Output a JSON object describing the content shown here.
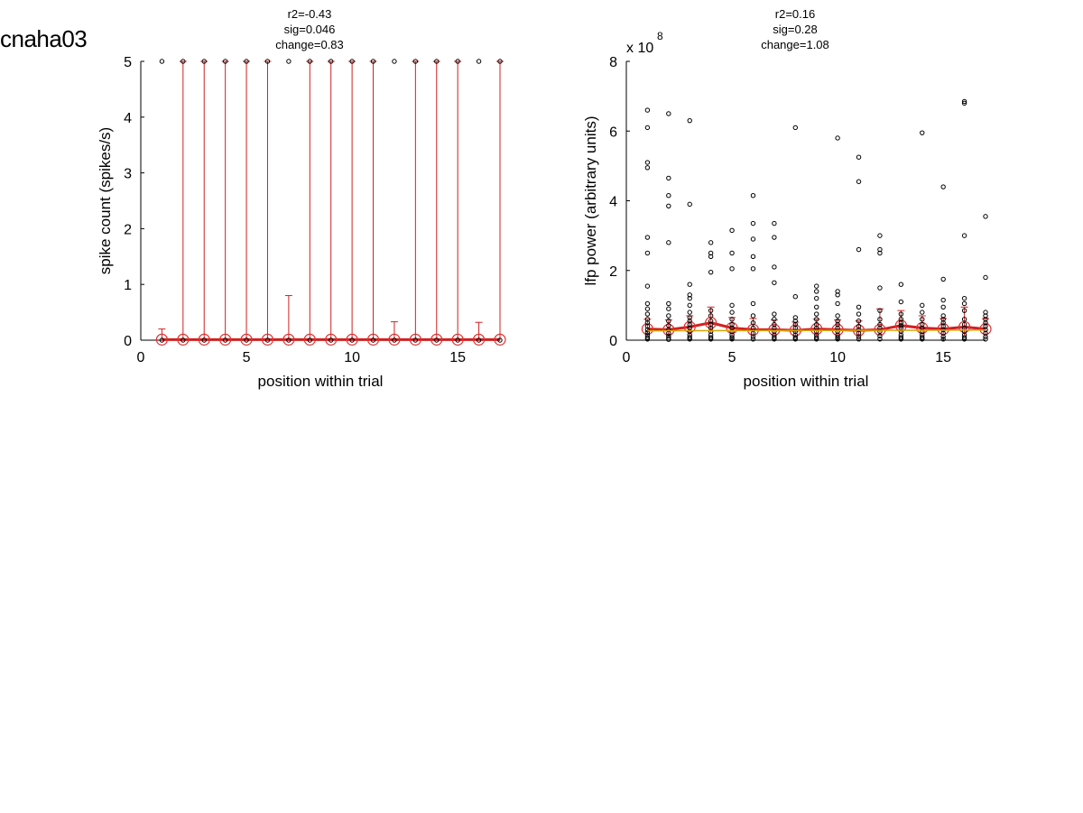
{
  "figure_label": "cnaha03",
  "chart_data": [
    {
      "type": "scatter",
      "title_lines": [
        "r2=-0.43",
        "sig=0.046",
        "change=0.83"
      ],
      "xlabel": "position within trial",
      "ylabel": "spike count (spikes/s)",
      "xlim": [
        0,
        17
      ],
      "ylim": [
        0,
        5
      ],
      "xticks": [
        0,
        5,
        10,
        15
      ],
      "yticks": [
        0,
        1,
        2,
        3,
        4,
        5
      ],
      "grid": false,
      "series": [
        {
          "kind": "points",
          "x": [
            1,
            1,
            2,
            2,
            3,
            3,
            4,
            4,
            5,
            5,
            6,
            6,
            7,
            7,
            8,
            8,
            9,
            9,
            10,
            10,
            11,
            11,
            12,
            12,
            13,
            13,
            14,
            14,
            15,
            15,
            16,
            16,
            17,
            17
          ],
          "y": [
            0,
            5,
            0,
            5,
            0,
            5,
            0,
            5,
            0,
            5,
            0,
            5,
            0,
            5,
            0,
            5,
            0,
            5,
            0,
            5,
            0,
            5,
            0,
            5,
            0,
            5,
            0,
            5,
            0,
            5,
            0,
            5,
            0,
            5
          ]
        },
        {
          "kind": "mean_errorbar",
          "x": [
            1,
            2,
            3,
            4,
            5,
            6,
            7,
            8,
            9,
            10,
            11,
            12,
            13,
            14,
            15,
            16,
            17
          ],
          "mean": [
            0.01,
            0.01,
            0.01,
            0.01,
            0.01,
            0.01,
            0.01,
            0.01,
            0.01,
            0.01,
            0.01,
            0.01,
            0.01,
            0.01,
            0.01,
            0.01,
            0.01
          ],
          "lower": [
            0,
            0,
            0,
            0,
            0,
            0,
            0,
            0,
            0,
            0,
            0,
            0,
            0,
            0,
            0,
            0,
            0
          ],
          "upper": [
            0.2,
            5,
            5,
            5,
            5,
            5,
            0.8,
            5,
            5,
            5,
            5,
            0.33,
            5,
            5,
            5,
            0.32,
            5
          ]
        }
      ]
    },
    {
      "type": "scatter",
      "title_lines": [
        "r2=0.16",
        "sig=0.28",
        "change=1.08"
      ],
      "xlabel": "position within trial",
      "ylabel": "lfp power (arbitrary units)",
      "y_multiplier_base": "x 10",
      "y_multiplier_exp": "8",
      "xlim": [
        0,
        17
      ],
      "ylim": [
        0,
        8
      ],
      "xticks": [
        0,
        5,
        10,
        15
      ],
      "yticks": [
        0,
        2,
        4,
        6,
        8
      ],
      "grid": false,
      "series": [
        {
          "kind": "points",
          "x": [
            1,
            1,
            1,
            1,
            1,
            1,
            1,
            1,
            1,
            1,
            1,
            1,
            1,
            1,
            1,
            1,
            1,
            1,
            2,
            2,
            2,
            2,
            2,
            2,
            2,
            2,
            2,
            2,
            2,
            2,
            2,
            2,
            2,
            3,
            3,
            3,
            3,
            3,
            3,
            3,
            3,
            3,
            3,
            3,
            3,
            3,
            3,
            3,
            4,
            4,
            4,
            4,
            4,
            4,
            4,
            4,
            4,
            4,
            4,
            4,
            4,
            5,
            5,
            5,
            5,
            5,
            5,
            5,
            5,
            5,
            5,
            5,
            5,
            6,
            6,
            6,
            6,
            6,
            6,
            6,
            6,
            6,
            6,
            6,
            6,
            7,
            7,
            7,
            7,
            7,
            7,
            7,
            7,
            7,
            7,
            7,
            7,
            8,
            8,
            8,
            8,
            8,
            8,
            8,
            8,
            8,
            8,
            9,
            9,
            9,
            9,
            9,
            9,
            9,
            9,
            9,
            9,
            9,
            9,
            10,
            10,
            10,
            10,
            10,
            10,
            10,
            10,
            10,
            10,
            10,
            10,
            11,
            11,
            11,
            11,
            11,
            11,
            11,
            11,
            11,
            11,
            11,
            12,
            12,
            12,
            12,
            12,
            12,
            12,
            12,
            12,
            12,
            12,
            13,
            13,
            13,
            13,
            13,
            13,
            13,
            13,
            13,
            13,
            13,
            14,
            14,
            14,
            14,
            14,
            14,
            14,
            14,
            14,
            14,
            15,
            15,
            15,
            15,
            15,
            15,
            15,
            15,
            15,
            15,
            15,
            15,
            16,
            16,
            16,
            16,
            16,
            16,
            16,
            16,
            16,
            16,
            16,
            16,
            16,
            17,
            17,
            17,
            17,
            17,
            17,
            17,
            17,
            17,
            17,
            17
          ],
          "y": [
            6.6,
            6.1,
            5.1,
            4.95,
            2.95,
            2.5,
            1.55,
            1.05,
            0.9,
            0.75,
            0.6,
            0.5,
            0.4,
            0.3,
            0.22,
            0.15,
            0.08,
            0.03,
            6.5,
            4.65,
            4.15,
            3.85,
            2.8,
            1.05,
            0.9,
            0.7,
            0.55,
            0.42,
            0.3,
            0.2,
            0.12,
            0.06,
            0.02,
            6.3,
            3.9,
            1.6,
            1.3,
            1.2,
            1.0,
            0.8,
            0.65,
            0.55,
            0.45,
            0.35,
            0.25,
            0.15,
            0.08,
            0.03,
            2.8,
            2.5,
            2.4,
            1.95,
            0.85,
            0.7,
            0.55,
            0.45,
            0.35,
            0.25,
            0.15,
            0.08,
            0.03,
            3.15,
            2.5,
            2.05,
            1.0,
            0.8,
            0.6,
            0.45,
            0.35,
            0.25,
            0.15,
            0.08,
            0.03,
            4.15,
            3.35,
            2.9,
            2.4,
            2.05,
            1.05,
            0.7,
            0.5,
            0.35,
            0.2,
            0.1,
            0.03,
            3.35,
            2.95,
            2.1,
            1.65,
            0.75,
            0.6,
            0.45,
            0.35,
            0.25,
            0.15,
            0.08,
            0.03,
            6.1,
            1.25,
            0.65,
            0.55,
            0.45,
            0.35,
            0.25,
            0.15,
            0.08,
            0.03,
            1.55,
            1.4,
            1.2,
            0.95,
            0.75,
            0.6,
            0.45,
            0.35,
            0.25,
            0.15,
            0.08,
            0.03,
            5.8,
            1.4,
            1.3,
            1.05,
            0.7,
            0.55,
            0.45,
            0.35,
            0.25,
            0.15,
            0.08,
            0.03,
            5.25,
            4.55,
            2.6,
            0.95,
            0.75,
            0.55,
            0.4,
            0.3,
            0.2,
            0.1,
            0.03,
            3.0,
            2.6,
            2.5,
            1.5,
            0.85,
            0.6,
            0.45,
            0.35,
            0.25,
            0.12,
            0.03,
            1.6,
            1.1,
            0.75,
            0.6,
            0.5,
            0.42,
            0.35,
            0.25,
            0.15,
            0.08,
            0.03,
            5.95,
            1.0,
            0.8,
            0.6,
            0.45,
            0.35,
            0.25,
            0.15,
            0.08,
            0.03,
            4.4,
            1.75,
            1.15,
            0.95,
            0.7,
            0.6,
            0.5,
            0.4,
            0.3,
            0.2,
            0.1,
            0.03,
            6.85,
            6.8,
            3.0,
            1.2,
            1.05,
            0.85,
            0.6,
            0.45,
            0.35,
            0.25,
            0.15,
            0.08,
            0.03,
            3.55,
            1.8,
            0.8,
            0.7,
            0.6,
            0.5,
            0.4,
            0.3,
            0.2,
            0.1,
            0.03
          ]
        },
        {
          "kind": "mean_errorbar",
          "x": [
            1,
            2,
            3,
            4,
            5,
            6,
            7,
            8,
            9,
            10,
            11,
            12,
            13,
            14,
            15,
            16,
            17
          ],
          "mean": [
            0.32,
            0.3,
            0.38,
            0.5,
            0.35,
            0.3,
            0.3,
            0.28,
            0.32,
            0.3,
            0.28,
            0.3,
            0.42,
            0.35,
            0.32,
            0.38,
            0.32
          ],
          "lower": [
            0.12,
            0.1,
            0.14,
            0.2,
            0.14,
            0.1,
            0.12,
            0.1,
            0.12,
            0.12,
            0.1,
            0.12,
            0.16,
            0.12,
            0.12,
            0.14,
            0.12
          ],
          "upper": [
            0.6,
            0.58,
            0.7,
            0.95,
            0.65,
            0.62,
            0.58,
            0.52,
            0.6,
            0.58,
            0.55,
            0.9,
            0.85,
            0.7,
            0.62,
            0.95,
            0.62
          ]
        },
        {
          "kind": "fit_line",
          "x": [
            1,
            17
          ],
          "y": [
            0.27,
            0.29
          ]
        }
      ]
    }
  ],
  "colors": {
    "errorbar": "#d02020",
    "mean_marker": "#e03030",
    "fit_line": "#d9a400",
    "axes": "#000000",
    "point_edge": "#000000"
  }
}
